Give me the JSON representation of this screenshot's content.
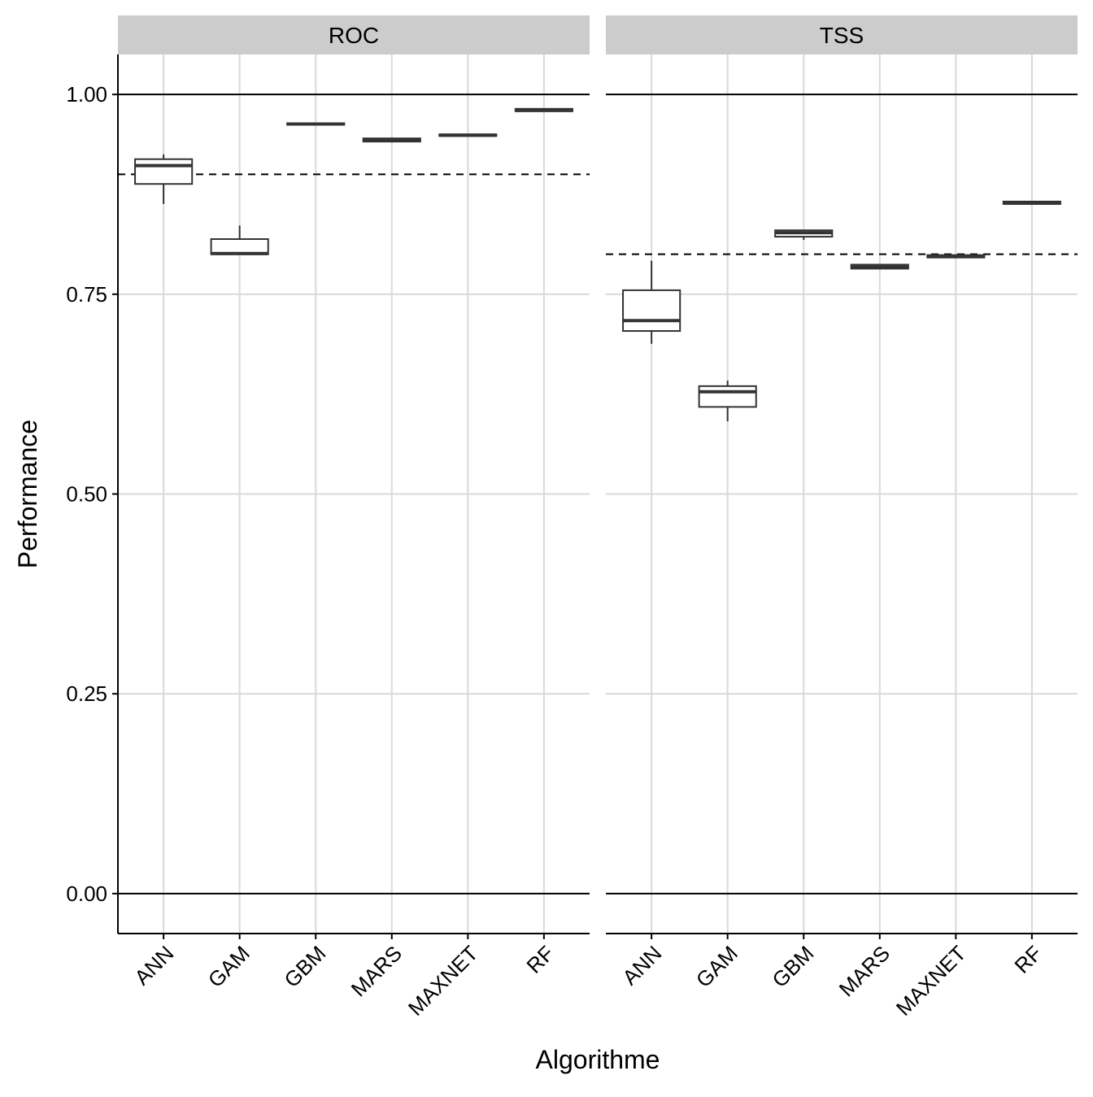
{
  "chart_data": {
    "type": "boxplot",
    "xlabel": "Algorithme",
    "ylabel": "Performance",
    "ylim": [
      -0.05,
      1.05
    ],
    "y_ticks": [
      0.0,
      0.25,
      0.5,
      0.75,
      1.0
    ],
    "y_tick_labels": [
      "0.00",
      "0.25",
      "0.50",
      "0.75",
      "1.00"
    ],
    "categories": [
      "ANN",
      "GAM",
      "GBM",
      "MARS",
      "MAXNET",
      "RF"
    ],
    "grid": true,
    "reference_lines": {
      "solid": [
        0.0,
        1.0
      ]
    },
    "colors": {
      "strip_bg": "#cccccc",
      "grid": "#d9d9d9",
      "box_stroke": "#333333",
      "axis": "#000000"
    },
    "panels": [
      {
        "label": "ROC",
        "threshold": 0.9,
        "boxes": [
          {
            "category": "ANN",
            "min": 0.863,
            "q1": 0.888,
            "median": 0.911,
            "q3": 0.919,
            "max": 0.925
          },
          {
            "category": "GAM",
            "min": 0.8,
            "q1": 0.8,
            "median": 0.801,
            "q3": 0.819,
            "max": 0.836
          },
          {
            "category": "GBM",
            "min": 0.962,
            "q1": 0.962,
            "median": 0.963,
            "q3": 0.964,
            "max": 0.964
          },
          {
            "category": "MARS",
            "min": 0.94,
            "q1": 0.941,
            "median": 0.943,
            "q3": 0.945,
            "max": 0.946
          },
          {
            "category": "MAXNET",
            "min": 0.948,
            "q1": 0.948,
            "median": 0.949,
            "q3": 0.95,
            "max": 0.95
          },
          {
            "category": "RF",
            "min": 0.979,
            "q1": 0.979,
            "median": 0.98,
            "q3": 0.982,
            "max": 0.982
          }
        ]
      },
      {
        "label": "TSS",
        "threshold": 0.8,
        "boxes": [
          {
            "category": "ANN",
            "min": 0.688,
            "q1": 0.704,
            "median": 0.717,
            "q3": 0.755,
            "max": 0.792
          },
          {
            "category": "GAM",
            "min": 0.591,
            "q1": 0.609,
            "median": 0.628,
            "q3": 0.635,
            "max": 0.642
          },
          {
            "category": "GBM",
            "min": 0.818,
            "q1": 0.822,
            "median": 0.827,
            "q3": 0.83,
            "max": 0.83
          },
          {
            "category": "MARS",
            "min": 0.781,
            "q1": 0.782,
            "median": 0.784,
            "q3": 0.787,
            "max": 0.787
          },
          {
            "category": "MAXNET",
            "min": 0.795,
            "q1": 0.796,
            "median": 0.797,
            "q3": 0.799,
            "max": 0.8
          },
          {
            "category": "RF",
            "min": 0.862,
            "q1": 0.863,
            "median": 0.864,
            "q3": 0.866,
            "max": 0.866
          }
        ]
      }
    ]
  }
}
